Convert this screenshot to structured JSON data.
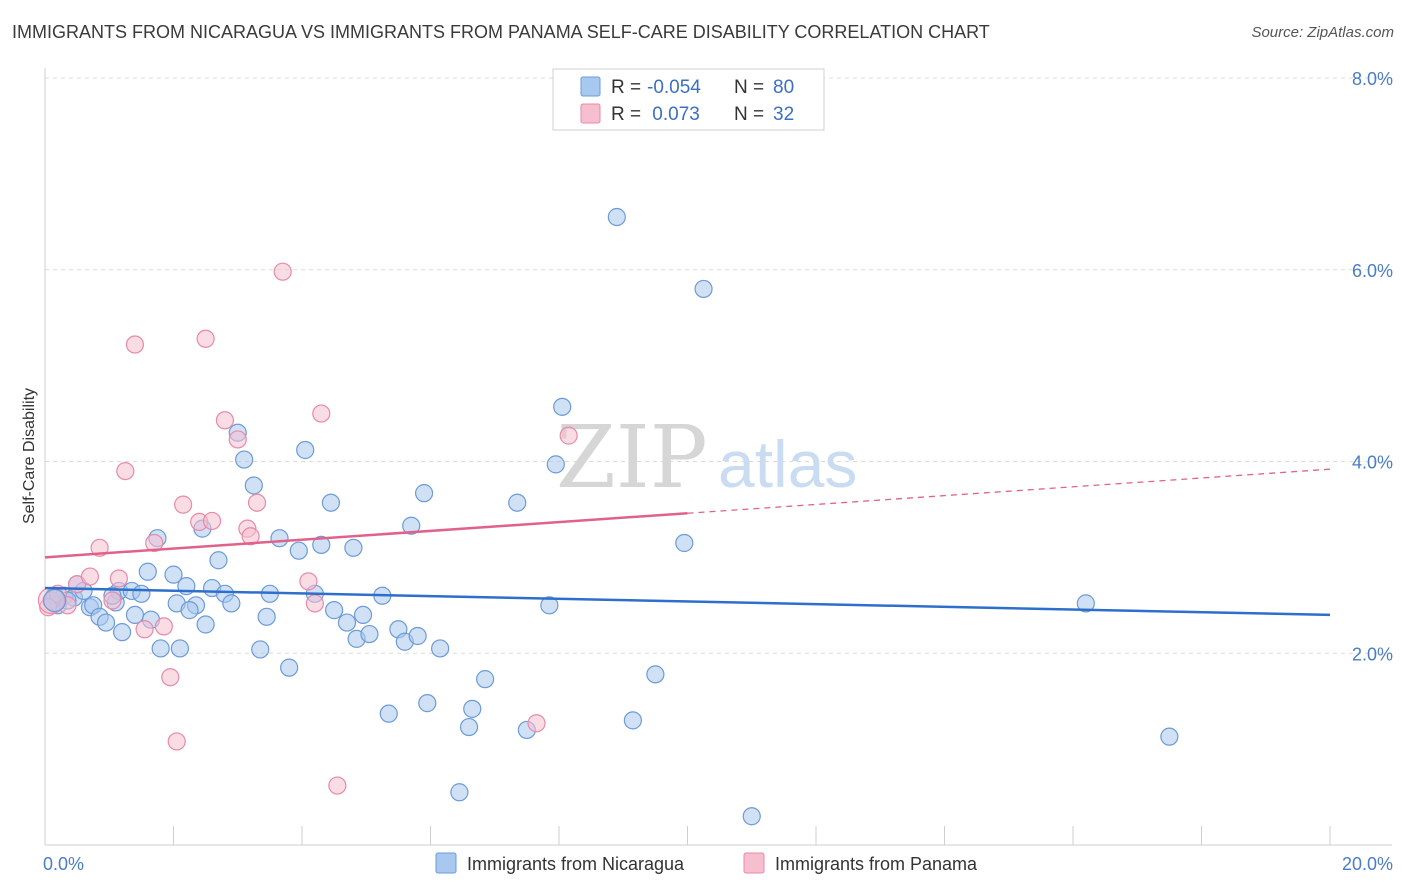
{
  "header": {
    "title": "IMMIGRANTS FROM NICARAGUA VS IMMIGRANTS FROM PANAMA SELF-CARE DISABILITY CORRELATION CHART",
    "source": "Source: ZipAtlas.com"
  },
  "watermark": {
    "zip": "ZIP",
    "atlas": "atlas"
  },
  "legend_box": {
    "rows": [
      {
        "r_label": "R =",
        "r_value": "-0.054",
        "n_label": "N =",
        "n_value": "80"
      },
      {
        "r_label": "R =",
        "r_value": " 0.073",
        "n_label": "N =",
        "n_value": "32"
      }
    ]
  },
  "colors": {
    "nicaragua_fill": "#a9c8ef",
    "nicaragua_stroke": "#6b9bd8",
    "nicaragua_line": "#2e6fcc",
    "panama_fill": "#f6bfd0",
    "panama_stroke": "#e88aa8",
    "panama_line": "#e0628a",
    "tick_label": "#4a7cc7",
    "grid": "#dcdcdc"
  },
  "chart_data": {
    "type": "scatter",
    "title": "IMMIGRANTS FROM NICARAGUA VS IMMIGRANTS FROM PANAMA SELF-CARE DISABILITY CORRELATION CHART",
    "xlabel": "",
    "ylabel": "Self-Care Disability",
    "xlim": [
      0,
      20
    ],
    "ylim": [
      0,
      8.3
    ],
    "x_tick_labels": [
      "0.0%",
      "20.0%"
    ],
    "y_ticks": [
      2,
      4,
      6,
      8
    ],
    "y_tick_labels": [
      "2.0%",
      "4.0%",
      "6.0%",
      "8.0%"
    ],
    "grid": true,
    "legend_position": "top-center",
    "series": [
      {
        "name": "Immigrants from Nicaragua",
        "r": -0.054,
        "n": 80,
        "trend": {
          "x": [
            0,
            20
          ],
          "y": [
            2.68,
            2.4
          ]
        },
        "points": [
          [
            0.1,
            2.55
          ],
          [
            0.2,
            2.5
          ],
          [
            0.3,
            2.6
          ],
          [
            0.45,
            2.58
          ],
          [
            0.5,
            2.72
          ],
          [
            0.6,
            2.65
          ],
          [
            0.7,
            2.48
          ],
          [
            0.75,
            2.5
          ],
          [
            0.85,
            2.38
          ],
          [
            0.95,
            2.32
          ],
          [
            1.1,
            2.53
          ],
          [
            1.15,
            2.65
          ],
          [
            1.2,
            2.22
          ],
          [
            1.35,
            2.65
          ],
          [
            1.4,
            2.4
          ],
          [
            1.5,
            2.62
          ],
          [
            1.65,
            2.35
          ],
          [
            1.6,
            2.85
          ],
          [
            1.75,
            3.2
          ],
          [
            1.8,
            2.05
          ],
          [
            2.0,
            2.82
          ],
          [
            2.05,
            2.52
          ],
          [
            2.1,
            2.05
          ],
          [
            2.2,
            2.7
          ],
          [
            2.35,
            2.5
          ],
          [
            2.45,
            3.3
          ],
          [
            2.5,
            2.3
          ],
          [
            2.6,
            2.68
          ],
          [
            2.7,
            2.97
          ],
          [
            2.8,
            2.62
          ],
          [
            2.9,
            2.52
          ],
          [
            3.0,
            4.3
          ],
          [
            3.1,
            4.02
          ],
          [
            3.25,
            3.75
          ],
          [
            3.35,
            2.04
          ],
          [
            3.45,
            2.38
          ],
          [
            3.5,
            2.62
          ],
          [
            3.65,
            3.2
          ],
          [
            3.8,
            1.85
          ],
          [
            3.95,
            3.07
          ],
          [
            4.05,
            4.12
          ],
          [
            4.2,
            2.62
          ],
          [
            4.3,
            3.13
          ],
          [
            4.45,
            3.57
          ],
          [
            4.5,
            2.45
          ],
          [
            4.7,
            2.32
          ],
          [
            4.8,
            3.1
          ],
          [
            4.85,
            2.15
          ],
          [
            4.95,
            2.4
          ],
          [
            5.05,
            2.2
          ],
          [
            5.25,
            2.6
          ],
          [
            5.35,
            1.37
          ],
          [
            5.5,
            2.25
          ],
          [
            5.6,
            2.12
          ],
          [
            5.7,
            3.33
          ],
          [
            5.8,
            2.18
          ],
          [
            5.9,
            3.67
          ],
          [
            5.95,
            1.48
          ],
          [
            6.15,
            2.05
          ],
          [
            6.45,
            0.55
          ],
          [
            6.6,
            1.23
          ],
          [
            6.65,
            1.42
          ],
          [
            6.85,
            1.73
          ],
          [
            7.35,
            3.57
          ],
          [
            7.5,
            1.2
          ],
          [
            7.85,
            2.5
          ],
          [
            7.95,
            3.97
          ],
          [
            8.05,
            4.57
          ],
          [
            8.9,
            6.55
          ],
          [
            9.15,
            1.3
          ],
          [
            9.5,
            1.78
          ],
          [
            9.95,
            3.15
          ],
          [
            10.25,
            5.8
          ],
          [
            11.0,
            0.3
          ],
          [
            16.2,
            2.52
          ],
          [
            17.5,
            1.13
          ],
          [
            0.15,
            2.6
          ],
          [
            0.35,
            2.55
          ],
          [
            1.05,
            2.6
          ],
          [
            2.25,
            2.45
          ]
        ]
      },
      {
        "name": "Immigrants from Panama",
        "r": 0.073,
        "n": 32,
        "trend": {
          "x": [
            0,
            10
          ],
          "y": [
            3.0,
            3.46
          ]
        },
        "trend_dashed": {
          "x": [
            10,
            20
          ],
          "y": [
            3.46,
            3.92
          ]
        },
        "points": [
          [
            0.1,
            2.55
          ],
          [
            0.2,
            2.62
          ],
          [
            0.35,
            2.5
          ],
          [
            0.5,
            2.72
          ],
          [
            0.7,
            2.8
          ],
          [
            0.85,
            3.1
          ],
          [
            1.05,
            2.55
          ],
          [
            1.15,
            2.78
          ],
          [
            1.25,
            3.9
          ],
          [
            1.4,
            5.22
          ],
          [
            1.55,
            2.25
          ],
          [
            1.7,
            3.15
          ],
          [
            1.85,
            2.28
          ],
          [
            1.95,
            1.75
          ],
          [
            2.05,
            1.08
          ],
          [
            2.15,
            3.55
          ],
          [
            2.4,
            3.37
          ],
          [
            2.5,
            5.28
          ],
          [
            2.6,
            3.38
          ],
          [
            2.8,
            4.43
          ],
          [
            3.0,
            4.23
          ],
          [
            3.15,
            3.3
          ],
          [
            3.2,
            3.22
          ],
          [
            3.3,
            3.57
          ],
          [
            3.7,
            5.98
          ],
          [
            4.1,
            2.75
          ],
          [
            4.2,
            2.52
          ],
          [
            4.3,
            4.5
          ],
          [
            4.55,
            0.62
          ],
          [
            7.65,
            1.27
          ],
          [
            8.15,
            4.27
          ],
          [
            0.05,
            2.48
          ]
        ]
      }
    ]
  },
  "bottom_legend": {
    "items": [
      {
        "label": "Immigrants from Nicaragua"
      },
      {
        "label": "Immigrants from Panama"
      }
    ]
  }
}
